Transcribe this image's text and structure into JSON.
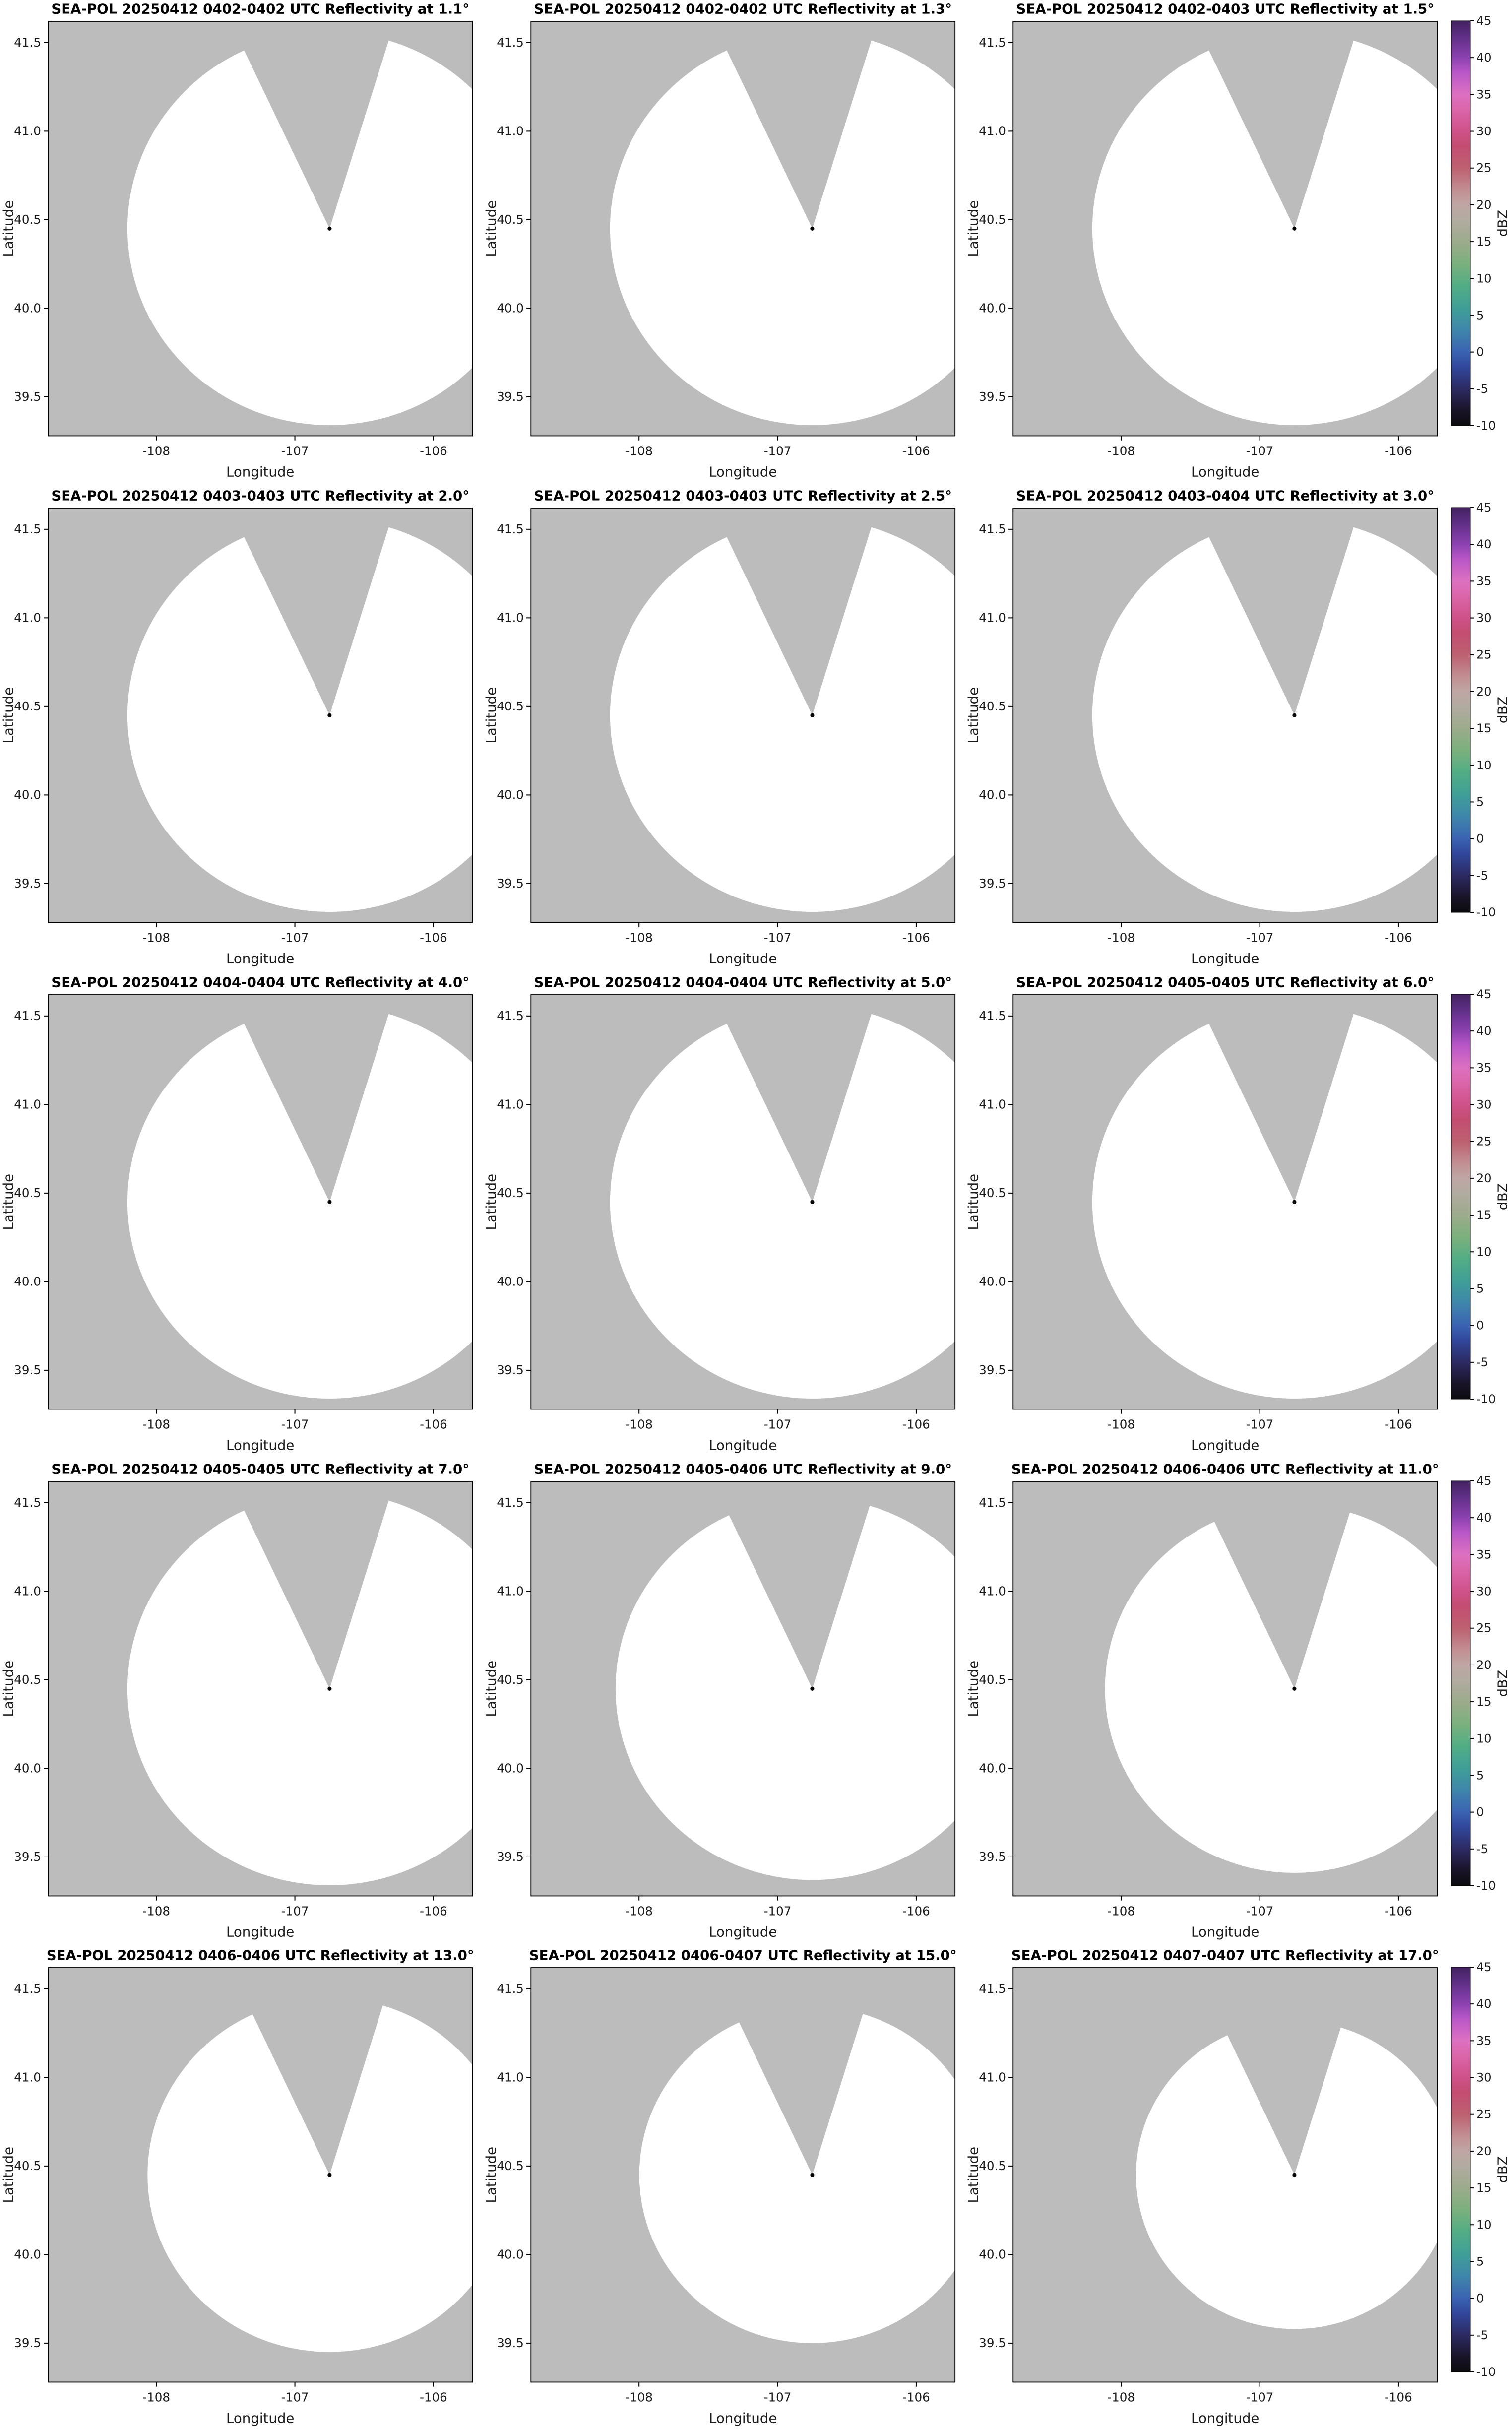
{
  "style": {
    "na_color": "#bcbcbc",
    "scan_fill": "#ffffff",
    "border_color": "#000000",
    "background": "#ffffff"
  },
  "chart_data": {
    "type": "heatmap",
    "note": "Fifteen radar PPI reflectivity panels (5 rows x 3 columns). The scanned coverage circle is blank (no echoes at or above -10 dBZ), shown white over a gray no-data background. A blocked azimuth sector appears as a gray wedge from the radar site to the north edge of each coverage circle. One shared colorbar per row.",
    "radar_location": {
      "lon": -106.75,
      "lat": 40.45
    },
    "blocked_sector_deg": [
      -25,
      18
    ],
    "x": {
      "label": "Longitude",
      "ticks": [
        -108,
        -107,
        -106
      ],
      "range": [
        -108.78,
        -105.72
      ]
    },
    "y": {
      "label": "Latitude",
      "ticks": [
        39.5,
        40.0,
        40.5,
        41.0,
        41.5
      ],
      "range": [
        39.28,
        41.62
      ]
    },
    "colorbar": {
      "label": "dBZ",
      "range": [
        -10,
        45
      ],
      "ticks": [
        -10,
        -5,
        0,
        5,
        10,
        15,
        20,
        25,
        30,
        35,
        40,
        45
      ],
      "stops": [
        {
          "value": -10,
          "color": "#0b0b0e"
        },
        {
          "value": -8,
          "color": "#191327"
        },
        {
          "value": -5,
          "color": "#2c2a62"
        },
        {
          "value": -2,
          "color": "#31479c"
        },
        {
          "value": 0,
          "color": "#3a63b2"
        },
        {
          "value": 3,
          "color": "#3f86ab"
        },
        {
          "value": 6,
          "color": "#3f9f97"
        },
        {
          "value": 9,
          "color": "#52ad85"
        },
        {
          "value": 12,
          "color": "#7bb07d"
        },
        {
          "value": 15,
          "color": "#9cab8c"
        },
        {
          "value": 18,
          "color": "#b2aba1"
        },
        {
          "value": 20,
          "color": "#bfa6a4"
        },
        {
          "value": 22,
          "color": "#c28f92"
        },
        {
          "value": 25,
          "color": "#bd6070"
        },
        {
          "value": 28,
          "color": "#c44d72"
        },
        {
          "value": 30,
          "color": "#cf5189"
        },
        {
          "value": 33,
          "color": "#db66aa"
        },
        {
          "value": 35,
          "color": "#dc70c1"
        },
        {
          "value": 38,
          "color": "#b957c8"
        },
        {
          "value": 40,
          "color": "#8c41b0"
        },
        {
          "value": 43,
          "color": "#5d2e84"
        },
        {
          "value": 45,
          "color": "#422260"
        }
      ]
    },
    "panels": [
      {
        "title": "SEA-POL 20250412 0402-0402 UTC Reflectivity at 1.1°",
        "time_utc": "0402-0402",
        "elevation_deg": 1.1,
        "coverage_radius_deg": 1.11
      },
      {
        "title": "SEA-POL 20250412 0402-0402 UTC Reflectivity at 1.3°",
        "time_utc": "0402-0402",
        "elevation_deg": 1.3,
        "coverage_radius_deg": 1.11
      },
      {
        "title": "SEA-POL 20250412 0402-0403 UTC Reflectivity at 1.5°",
        "time_utc": "0402-0403",
        "elevation_deg": 1.5,
        "coverage_radius_deg": 1.11
      },
      {
        "title": "SEA-POL 20250412 0403-0403 UTC Reflectivity at 2.0°",
        "time_utc": "0403-0403",
        "elevation_deg": 2.0,
        "coverage_radius_deg": 1.11
      },
      {
        "title": "SEA-POL 20250412 0403-0403 UTC Reflectivity at 2.5°",
        "time_utc": "0403-0403",
        "elevation_deg": 2.5,
        "coverage_radius_deg": 1.11
      },
      {
        "title": "SEA-POL 20250412 0403-0404 UTC Reflectivity at 3.0°",
        "time_utc": "0403-0404",
        "elevation_deg": 3.0,
        "coverage_radius_deg": 1.11
      },
      {
        "title": "SEA-POL 20250412 0404-0404 UTC Reflectivity at 4.0°",
        "time_utc": "0404-0404",
        "elevation_deg": 4.0,
        "coverage_radius_deg": 1.11
      },
      {
        "title": "SEA-POL 20250412 0404-0404 UTC Reflectivity at 5.0°",
        "time_utc": "0404-0404",
        "elevation_deg": 5.0,
        "coverage_radius_deg": 1.11
      },
      {
        "title": "SEA-POL 20250412 0405-0405 UTC Reflectivity at 6.0°",
        "time_utc": "0405-0405",
        "elevation_deg": 6.0,
        "coverage_radius_deg": 1.11
      },
      {
        "title": "SEA-POL 20250412 0405-0405 UTC Reflectivity at 7.0°",
        "time_utc": "0405-0405",
        "elevation_deg": 7.0,
        "coverage_radius_deg": 1.11
      },
      {
        "title": "SEA-POL 20250412 0405-0406 UTC Reflectivity at 9.0°",
        "time_utc": "0405-0406",
        "elevation_deg": 9.0,
        "coverage_radius_deg": 1.08
      },
      {
        "title": "SEA-POL 20250412 0406-0406 UTC Reflectivity at 11.0°",
        "time_utc": "0406-0406",
        "elevation_deg": 11.0,
        "coverage_radius_deg": 1.04
      },
      {
        "title": "SEA-POL 20250412 0406-0406 UTC Reflectivity at 13.0°",
        "time_utc": "0406-0406",
        "elevation_deg": 13.0,
        "coverage_radius_deg": 1.0
      },
      {
        "title": "SEA-POL 20250412 0406-0407 UTC Reflectivity at 15.0°",
        "time_utc": "0406-0407",
        "elevation_deg": 15.0,
        "coverage_radius_deg": 0.95
      },
      {
        "title": "SEA-POL 20250412 0407-0407 UTC Reflectivity at 17.0°",
        "time_utc": "0407-0407",
        "elevation_deg": 17.0,
        "coverage_radius_deg": 0.87
      }
    ]
  }
}
